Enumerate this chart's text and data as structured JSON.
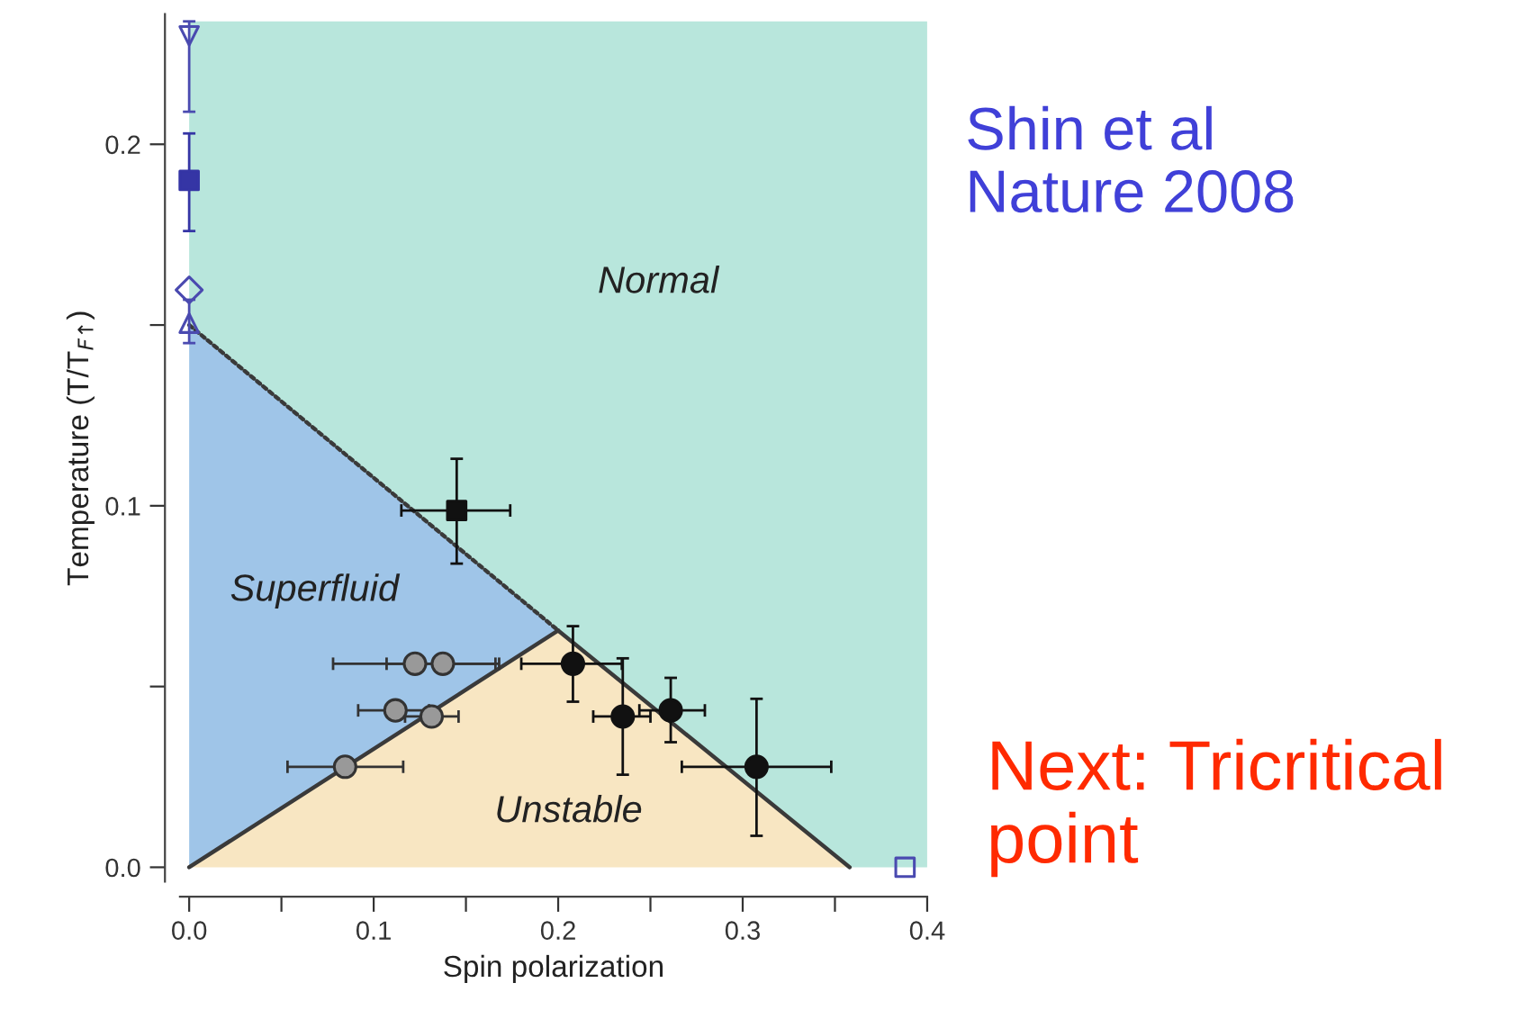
{
  "chart_data": {
    "type": "scatter",
    "xlabel": "Spin polarization",
    "ylabel": "Temperature (T/T$_{F↑}$)",
    "xlim": [
      -0.005,
      0.4
    ],
    "ylim": [
      -0.004,
      0.236
    ],
    "xticks": [
      {
        "value": 0,
        "label": "0.0"
      },
      {
        "value": 0.05,
        "label": null
      },
      0.1,
      {
        "value": 0.15,
        "label": null
      },
      0.2,
      {
        "value": 0.25,
        "label": null
      },
      0.3,
      {
        "value": 0.35,
        "label": null
      },
      0.4
    ],
    "yticks": [
      {
        "value": 0,
        "label": "0.0"
      },
      {
        "value": 0.05,
        "label": null
      },
      0.1,
      {
        "value": 0.15,
        "label": null
      },
      0.2
    ],
    "grid": false,
    "legend": false,
    "stacked": true,
    "series": [
      {
        "type": "area",
        "color": "#f8e6c2",
        "line_style": "solid",
        "x": [
          0,
          0.2,
          0.358,
          0.4
        ],
        "values": [
          0,
          0.0655,
          0,
          0
        ]
      },
      {
        "type": "area",
        "color": "#9fc5e8",
        "line_style": "dotted",
        "x": [
          0,
          0.2,
          0.358,
          0.4
        ],
        "values": [
          0.15,
          0,
          0,
          0
        ]
      },
      {
        "type": "area",
        "color": "#b8e6dc",
        "x": [
          0,
          0.2,
          0.358,
          0.4
        ],
        "values": [
          0.084,
          0.1685,
          0.234,
          0.234
        ]
      },
      {
        "color": "#111111",
        "marker": "square",
        "x": [
          0.145
        ],
        "values": [
          0.0987
        ],
        "errors": [
          [
            0.084,
            0.113
          ]
        ],
        "xerrors": [
          [
            0.115,
            0.174
          ]
        ]
      },
      {
        "color": "#111111",
        "marker": "circle",
        "x": [
          0.208,
          0.235,
          0.261,
          0.3075
        ],
        "values": [
          0.0563,
          0.0417,
          0.0434,
          0.0278
        ],
        "errors": [
          [
            0.0458,
            0.0667
          ],
          [
            0.0256,
            0.0578
          ],
          [
            0.0346,
            0.0524
          ],
          [
            0.0087,
            0.0466
          ]
        ],
        "xerrors": [
          [
            0.18,
            0.2345
          ],
          [
            0.219,
            0.25
          ],
          [
            0.244,
            0.2795
          ],
          [
            0.267,
            0.348
          ]
        ]
      },
      {
        "color": "#999999",
        "marker": "circle",
        "x": [
          0.1224,
          0.1375,
          0.1118,
          0.1314,
          0.0845
        ],
        "values": [
          0.0563,
          0.0563,
          0.0434,
          0.0417,
          0.0278
        ],
        "xerrors": [
          [
            0.078,
            0.166
          ],
          [
            0.107,
            0.168
          ],
          [
            0.0916,
            0.13
          ],
          [
            0.117,
            0.146
          ],
          [
            0.0533,
            0.116
          ]
        ]
      },
      {
        "color": "#4a4ab0",
        "marker": "triangle_down",
        "x": [
          0
        ],
        "values": [
          0.23
        ],
        "errors": [
          [
            0.209,
            0.234
          ]
        ]
      },
      {
        "color": "#3535a5",
        "marker": "square",
        "x": [
          0
        ],
        "values": [
          0.19
        ],
        "errors": [
          [
            0.176,
            0.203
          ]
        ]
      },
      {
        "color": "#4a4ab0",
        "marker": "diamond",
        "x": [
          0
        ],
        "values": [
          0.1597
        ]
      },
      {
        "color": "#4a4ab0",
        "marker": "triangle",
        "x": [
          0
        ],
        "values": [
          0.1505
        ],
        "errors": [
          [
            0.145,
            0.157
          ]
        ]
      },
      {
        "color": "#4a4ab0",
        "marker": "square",
        "x": [
          0.388
        ],
        "values": [
          0
        ]
      }
    ],
    "annotations": [
      "Normal",
      "Superfluid",
      "Unstable",
      "Shin et al\nNature 2008",
      "Next: Tricritical\npoint"
    ]
  }
}
